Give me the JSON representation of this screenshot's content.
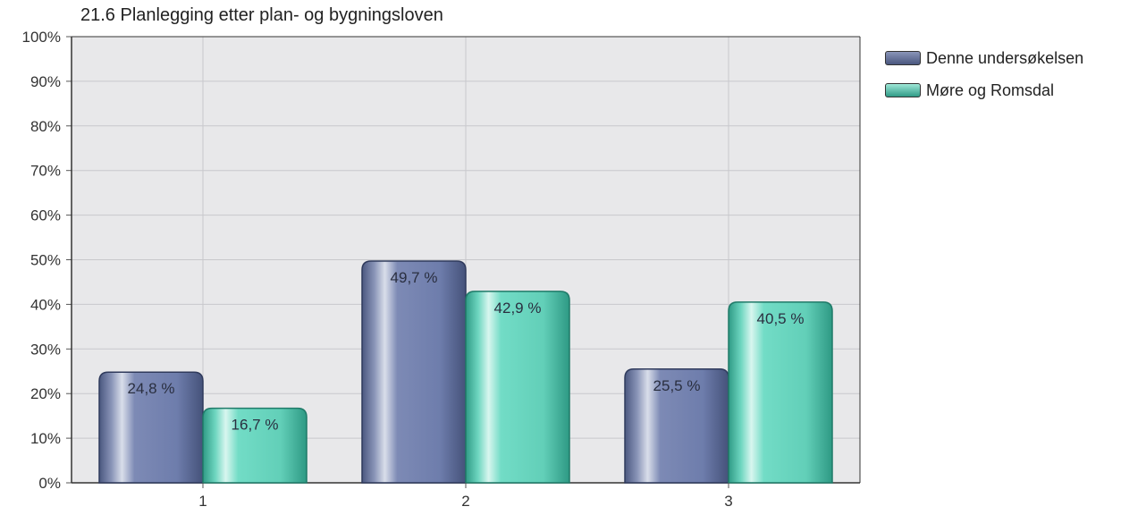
{
  "chart_data": {
    "type": "bar",
    "title": "21.6 Planlegging etter plan- og bygningsloven",
    "categories": [
      "1",
      "2",
      "3"
    ],
    "series": [
      {
        "name": "Denne undersøkelsen",
        "values": [
          24.8,
          49.7,
          25.5
        ],
        "labels": [
          "24,8 %",
          "49,7 %",
          "25,5 %"
        ],
        "color": "#6f7fae"
      },
      {
        "name": "Møre og Romsdal",
        "values": [
          16.7,
          42.9,
          40.5
        ],
        "labels": [
          "16,7 %",
          "42,9 %",
          "40,5 %"
        ],
        "color": "#5fcdb6"
      }
    ],
    "ylim": [
      0,
      100
    ],
    "yticks": [
      "0%",
      "10%",
      "20%",
      "30%",
      "40%",
      "50%",
      "60%",
      "70%",
      "80%",
      "90%",
      "100%"
    ],
    "grid": true,
    "legend_position": "right",
    "plot_background": "#e8e8ea"
  }
}
